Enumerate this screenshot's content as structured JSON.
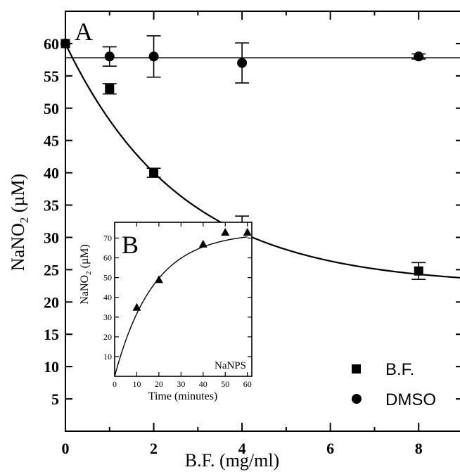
{
  "chart_data": [
    {
      "panel": "A",
      "type": "scatter",
      "xlabel": "B.F. (mg/ml)",
      "ylabel_main": "NaNO",
      "ylabel_sub": "2",
      "ylabel_unit": " (µM)",
      "xlim": [
        0,
        9
      ],
      "ylim": [
        0,
        65
      ],
      "xticks": [
        0,
        2,
        4,
        6,
        8
      ],
      "yticks": [
        5,
        10,
        15,
        20,
        25,
        30,
        35,
        40,
        45,
        50,
        55,
        60
      ],
      "legend_placement": "bottom-right",
      "series": [
        {
          "name": "B.F.",
          "marker": "square",
          "points": [
            {
              "x": 0,
              "y": 60,
              "err": 0
            },
            {
              "x": 1,
              "y": 53,
              "err": 0.8
            },
            {
              "x": 2,
              "y": 40,
              "err": 0.7
            },
            {
              "x": 4,
              "y": 31,
              "err": 2.3
            },
            {
              "x": 8,
              "y": 24.8,
              "err": 1.3
            }
          ],
          "fit": {
            "model": "exponential",
            "y0": 22.5,
            "A": 37.5,
            "k": 0.38
          }
        },
        {
          "name": "DMSO",
          "marker": "circle",
          "points": [
            {
              "x": 0,
              "y": 60,
              "err": 0
            },
            {
              "x": 1,
              "y": 58,
              "err": 1.5
            },
            {
              "x": 2,
              "y": 58,
              "err": 3.2
            },
            {
              "x": 4,
              "y": 57,
              "err": 3.1
            },
            {
              "x": 8,
              "y": 58,
              "err": 0.4
            }
          ],
          "fit": {
            "model": "constant",
            "y": 57.8
          }
        }
      ]
    },
    {
      "panel": "B",
      "type": "scatter",
      "xlabel": "Time (minutes)",
      "ylabel_main": "NaNO",
      "ylabel_sub": "2",
      "ylabel_unit": " (µM)",
      "annotation": "NaNPS",
      "xlim": [
        0,
        62
      ],
      "ylim": [
        0,
        78
      ],
      "xticks": [
        0,
        10,
        20,
        30,
        40,
        50,
        60
      ],
      "yticks": [
        10,
        20,
        30,
        40,
        50,
        60,
        70
      ],
      "series": [
        {
          "marker": "triangle",
          "points": [
            {
              "x": 10,
              "y": 35
            },
            {
              "x": 20,
              "y": 49
            },
            {
              "x": 40,
              "y": 67
            },
            {
              "x": 50,
              "y": 73
            },
            {
              "x": 60,
              "y": 73
            }
          ],
          "fit": {
            "model": "saturation",
            "ymax": 73,
            "k": 0.057
          }
        }
      ]
    }
  ]
}
